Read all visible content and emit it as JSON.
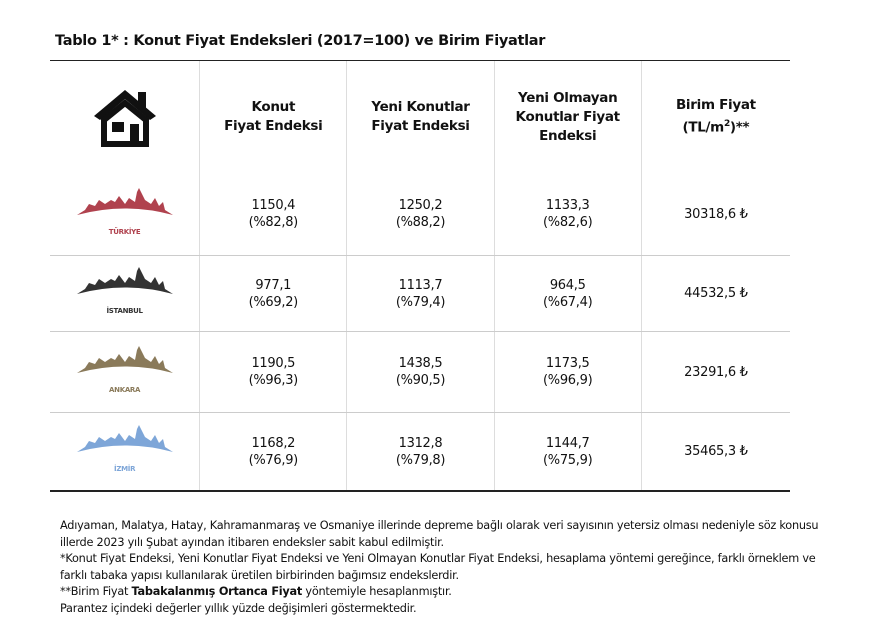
{
  "title": "Tablo 1* : Konut Fiyat Endeksleri (2017=100) ve Birim Fiyatlar",
  "headers": {
    "konut_line1": "Konut",
    "konut_line2": "Fiyat Endeksi",
    "yeni_line1": "Yeni Konutlar",
    "yeni_line2": "Fiyat Endeksi",
    "eski_line1": "Yeni Olmayan",
    "eski_line2": "Konutlar Fiyat",
    "eski_line3": "Endeksi",
    "birim_line1": "Birim Fiyat",
    "birim_line2a": "(TL/m",
    "birim_sup": "2",
    "birim_line2b": ")**"
  },
  "rows": [
    {
      "city": "TÜRKİYE",
      "color": "#b0424e",
      "konut": "1150,4",
      "konut_chg": "(%82,8)",
      "yeni": "1250,2",
      "yeni_chg": "(%88,2)",
      "eski": "1133,3",
      "eski_chg": "(%82,6)",
      "birim": "30318,6 ₺"
    },
    {
      "city": "İSTANBUL",
      "color": "#333333",
      "konut": "977,1",
      "konut_chg": "(%69,2)",
      "yeni": "1113,7",
      "yeni_chg": "(%79,4)",
      "eski": "964,5",
      "eski_chg": "(%67,4)",
      "birim": "44532,5 ₺"
    },
    {
      "city": "ANKARA",
      "color": "#8a7a5a",
      "konut": "1190,5",
      "konut_chg": "(%96,3)",
      "yeni": "1438,5",
      "yeni_chg": "(%90,5)",
      "eski": "1173,5",
      "eski_chg": "(%96,9)",
      "birim": "23291,6 ₺"
    },
    {
      "city": "İZMİR",
      "color": "#7ea6d8",
      "konut": "1168,2",
      "konut_chg": "(%76,9)",
      "yeni": "1312,8",
      "yeni_chg": "(%79,8)",
      "eski": "1144,7",
      "eski_chg": "(%75,9)",
      "birim": "35465,3 ₺"
    }
  ],
  "notes": {
    "n1": "Adıyaman, Malatya, Hatay, Kahramanmaraş ve Osmaniye illerinde depreme bağlı olarak veri sayısının yetersiz olması nedeniyle söz konusu illerde 2023 yılı Şubat ayından itibaren endeksler sabit kabul edilmiştir.",
    "n2": "*Konut Fiyat Endeksi, Yeni Konutlar Fiyat Endeksi ve Yeni Olmayan Konutlar Fiyat Endeksi, hesaplama yöntemi gereğince, farklı örneklem ve farklı tabaka yapısı kullanılarak üretilen birbirinden bağımsız endekslerdir.",
    "n3a": "**Birim Fiyat ",
    "n3b": "Tabakalanmış Ortanca Fiyat",
    "n3c": " yöntemiyle hesaplanmıştır.",
    "n4": "Parantez içindeki değerler yıllık yüzde değişimleri göstermektedir."
  }
}
